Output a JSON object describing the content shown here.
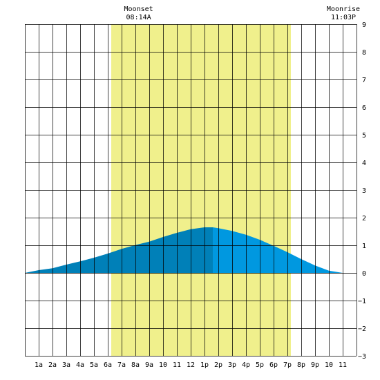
{
  "chart_data": {
    "type": "area",
    "title": "",
    "xlabel": "",
    "ylabel": "",
    "x_tick_labels": [
      "1a",
      "2a",
      "3a",
      "4a",
      "5a",
      "6a",
      "7a",
      "8a",
      "9a",
      "10",
      "11",
      "12",
      "1p",
      "2p",
      "3p",
      "4p",
      "5p",
      "6p",
      "7p",
      "8p",
      "9p",
      "10",
      "11"
    ],
    "y_ticks": [
      9,
      8,
      7,
      6,
      5,
      4,
      3,
      2,
      1,
      0,
      -1,
      -2,
      -3
    ],
    "xlim_hours": [
      0,
      24
    ],
    "ylim": [
      -3,
      9
    ],
    "grid": true,
    "daylight": {
      "start_hour": 6.25,
      "end_hour": 19.25,
      "color": "#f0f08c"
    },
    "annotations": [
      {
        "label": "Moonset",
        "time": "08:14A",
        "hour": 8.23
      },
      {
        "label": "Moonrise",
        "time": "11:03P",
        "hour": 23.05
      }
    ],
    "series": [
      {
        "x": [
          0,
          1,
          2,
          3,
          4,
          5,
          6,
          7,
          8,
          9,
          10,
          11,
          12,
          13,
          13.6,
          14,
          15,
          16,
          17,
          18,
          19,
          20,
          21,
          22,
          23,
          24
        ],
        "values": [
          0.0,
          0.1,
          0.17,
          0.3,
          0.42,
          0.55,
          0.7,
          0.87,
          1.01,
          1.13,
          1.3,
          1.45,
          1.58,
          1.65,
          1.65,
          1.62,
          1.52,
          1.38,
          1.2,
          0.98,
          0.75,
          0.5,
          0.27,
          0.08,
          0.0,
          0.0
        ]
      }
    ],
    "fill_rising": "#0080b8",
    "fill_falling": "#0098e0",
    "high_tide_hour": 13.6
  }
}
